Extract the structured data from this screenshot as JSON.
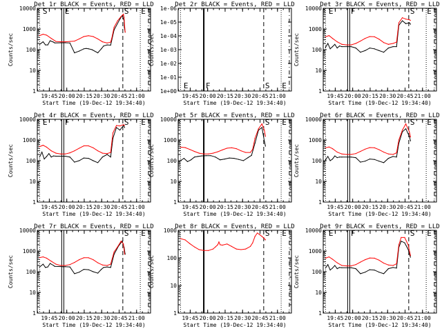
{
  "figure": {
    "title": ""
  },
  "common": {
    "title_suffix": "BLACK = Events, RED = LLD",
    "xlabel": "Start Time (19-Dec-12 19:34:40)",
    "ylabel": "Counts/sec",
    "xticks": [
      "19:45",
      "20:00",
      "20:15",
      "20:30",
      "20:45",
      "21:00"
    ],
    "colors": {
      "events": "#000000",
      "lld": "#ff0000"
    }
  },
  "chart_data": [
    {
      "type": "line",
      "detector": "Det 1r",
      "title": "Det 1r  BLACK = Events, RED = LLD",
      "xlim": [
        "19:34:40",
        "21:12"
      ],
      "ylim": [
        1,
        10000
      ],
      "yticks": [
        "1",
        "10",
        "100",
        "1000",
        "10000"
      ],
      "markers": [
        "S",
        "E",
        "S",
        "E"
      ],
      "series": [
        {
          "name": "Events",
          "color": "#000000",
          "x": [
            0,
            3,
            5,
            7,
            9,
            12,
            13,
            20,
            22,
            26,
            30,
            34,
            38,
            40,
            42,
            45,
            50,
            53,
            55,
            58,
            61,
            64,
            69,
            71,
            72.6,
            72.8,
            73.5
          ],
          "y": [
            180,
            240,
            170,
            170,
            270,
            230,
            210,
            215,
            215,
            210,
            70,
            85,
            110,
            115,
            110,
            100,
            70,
            110,
            150,
            170,
            165,
            900,
            3000,
            4500,
            2500,
            1200,
            700
          ]
        },
        {
          "name": "LLD",
          "color": "#ff0000",
          "x": [
            0,
            3,
            6,
            10,
            14,
            18,
            22,
            26,
            30,
            34,
            38,
            42,
            46,
            50,
            54,
            58,
            61,
            62,
            64,
            67,
            70,
            72,
            72.6,
            73,
            73.5
          ],
          "y": [
            480,
            560,
            500,
            350,
            250,
            240,
            240,
            250,
            260,
            330,
            430,
            470,
            430,
            330,
            240,
            210,
            230,
            350,
            1200,
            2500,
            4000,
            5200,
            3500,
            1500,
            700
          ]
        }
      ]
    },
    {
      "type": "line",
      "detector": "Det 2r",
      "title": "Det 2r  BLACK = Events, RED = LLD",
      "xlim": [
        "19:34:40",
        "21:12"
      ],
      "ylim": [
        1,
        1.00001
      ],
      "yticks": [
        "1e+00",
        "1e-01",
        "1e-02",
        "1e-03",
        "1e-04",
        "1e-05",
        "1e-06"
      ],
      "markers": [
        "E",
        "F",
        "S",
        "E"
      ],
      "series": []
    },
    {
      "type": "line",
      "detector": "Det 3r",
      "title": "Det 3r  BLACK = Events, RED = LLD",
      "xlim": [
        "19:34:40",
        "21:12"
      ],
      "ylim": [
        1,
        10000
      ],
      "yticks": [
        "1",
        "10",
        "100",
        "1000",
        "10000"
      ],
      "markers": [
        "E",
        "F",
        "S",
        "E"
      ],
      "series": [
        {
          "name": "Events",
          "color": "#000000",
          "x": [
            0,
            2,
            4,
            6,
            8,
            10,
            12,
            14,
            22,
            26,
            30,
            34,
            38,
            42,
            46,
            50,
            54,
            58,
            61,
            63,
            66,
            69,
            72,
            73
          ],
          "y": [
            130,
            200,
            110,
            140,
            180,
            120,
            150,
            140,
            140,
            120,
            75,
            90,
            120,
            110,
            90,
            75,
            120,
            140,
            140,
            1500,
            2500,
            1800,
            2000,
            1700
          ]
        },
        {
          "name": "LLD",
          "color": "#ff0000",
          "x": [
            0,
            3,
            6,
            10,
            14,
            18,
            22,
            26,
            30,
            34,
            38,
            42,
            46,
            50,
            54,
            58,
            61,
            63,
            66,
            69,
            72,
            73
          ],
          "y": [
            420,
            480,
            350,
            240,
            180,
            170,
            170,
            200,
            260,
            350,
            430,
            420,
            320,
            220,
            180,
            200,
            230,
            2000,
            3500,
            3000,
            2800,
            2600
          ]
        }
      ]
    },
    {
      "type": "line",
      "detector": "Det 4r",
      "title": "Det 4r  BLACK = Events, RED = LLD",
      "xlim": [
        "19:34:40",
        "21:12"
      ],
      "ylim": [
        1,
        10000
      ],
      "yticks": [
        "1",
        "10",
        "100",
        "1000",
        "10000"
      ],
      "markers": [
        "E",
        "F",
        "S",
        "E"
      ],
      "series": [
        {
          "name": "Events",
          "color": "#000000",
          "x": [
            0,
            2,
            4,
            6,
            8,
            10,
            12,
            14,
            22,
            26,
            30,
            34,
            38,
            42,
            46,
            50,
            54,
            58,
            61,
            63,
            66,
            69,
            72,
            73
          ],
          "y": [
            150,
            260,
            120,
            160,
            220,
            150,
            170,
            165,
            165,
            150,
            85,
            100,
            135,
            130,
            100,
            80,
            150,
            200,
            150,
            1200,
            4000,
            3000,
            5000,
            4000
          ]
        },
        {
          "name": "LLD",
          "color": "#ff0000",
          "x": [
            0,
            3,
            6,
            10,
            14,
            18,
            22,
            26,
            30,
            34,
            38,
            42,
            46,
            50,
            54,
            58,
            61,
            63,
            66,
            69,
            72,
            73
          ],
          "y": [
            480,
            560,
            450,
            300,
            230,
            210,
            210,
            240,
            300,
            400,
            520,
            520,
            420,
            300,
            230,
            220,
            250,
            2200,
            5000,
            4800,
            5500,
            5000
          ]
        }
      ]
    },
    {
      "type": "line",
      "detector": "Det 5r",
      "title": "Det 5r  BLACK = Events, RED = LLD",
      "xlim": [
        "19:34:40",
        "21:12"
      ],
      "ylim": [
        1,
        10000
      ],
      "yticks": [
        "1",
        "10",
        "100",
        "1000",
        "10000"
      ],
      "markers": [
        "S",
        "E"
      ],
      "series": [
        {
          "name": "Events",
          "color": "#000000",
          "x": [
            0,
            3,
            6,
            9,
            12,
            15,
            18,
            22,
            26,
            30,
            34,
            38,
            42,
            46,
            50,
            54,
            58,
            61,
            64,
            67,
            70,
            72,
            73
          ],
          "y": [
            100,
            130,
            90,
            110,
            150,
            160,
            170,
            175,
            175,
            150,
            110,
            120,
            135,
            130,
            115,
            100,
            140,
            180,
            700,
            3000,
            4000,
            900,
            500
          ]
        },
        {
          "name": "LLD",
          "color": "#ff0000",
          "x": [
            0,
            4,
            8,
            12,
            16,
            20,
            24,
            28,
            32,
            36,
            40,
            44,
            48,
            52,
            56,
            60,
            62,
            64,
            67,
            70,
            72,
            73
          ],
          "y": [
            450,
            430,
            350,
            280,
            230,
            210,
            210,
            230,
            270,
            330,
            400,
            420,
            380,
            300,
            250,
            250,
            350,
            1200,
            3500,
            6000,
            3000,
            1500
          ]
        }
      ]
    },
    {
      "type": "line",
      "detector": "Det 6r",
      "title": "Det 6r  BLACK = Events, RED = LLD",
      "xlim": [
        "19:34:40",
        "21:12"
      ],
      "ylim": [
        1,
        10000
      ],
      "yticks": [
        "1",
        "10",
        "100",
        "1000",
        "10000"
      ],
      "markers": [
        "S",
        "E"
      ],
      "series": [
        {
          "name": "Events",
          "color": "#000000",
          "x": [
            0,
            2,
            4,
            6,
            8,
            10,
            12,
            14,
            22,
            26,
            30,
            34,
            38,
            42,
            46,
            50,
            54,
            58,
            61,
            63,
            66,
            69,
            72,
            73
          ],
          "y": [
            110,
            160,
            100,
            120,
            170,
            140,
            150,
            150,
            150,
            140,
            85,
            95,
            120,
            115,
            95,
            80,
            130,
            160,
            150,
            700,
            2500,
            3500,
            1500,
            900
          ]
        },
        {
          "name": "LLD",
          "color": "#ff0000",
          "x": [
            0,
            3,
            6,
            10,
            14,
            18,
            22,
            26,
            30,
            34,
            38,
            42,
            46,
            50,
            54,
            58,
            61,
            63,
            66,
            69,
            72,
            73
          ],
          "y": [
            420,
            460,
            380,
            260,
            210,
            200,
            200,
            220,
            280,
            360,
            430,
            420,
            340,
            260,
            210,
            200,
            240,
            1000,
            3000,
            6000,
            2500,
            1400
          ]
        }
      ]
    },
    {
      "type": "line",
      "detector": "Det 7r",
      "title": "Det 7r  BLACK = Events, RED = LLD",
      "xlim": [
        "19:34:40",
        "21:12"
      ],
      "ylim": [
        1,
        10000
      ],
      "yticks": [
        "1",
        "10",
        "100",
        "1000",
        "10000"
      ],
      "markers": [
        "S",
        "E"
      ],
      "series": [
        {
          "name": "Events",
          "color": "#000000",
          "x": [
            0,
            3,
            5,
            7,
            9,
            12,
            13,
            20,
            22,
            26,
            30,
            34,
            38,
            42,
            46,
            50,
            53,
            55,
            58,
            61,
            64,
            68,
            71,
            72.6,
            73.5
          ],
          "y": [
            170,
            230,
            160,
            170,
            250,
            200,
            180,
            175,
            175,
            170,
            80,
            95,
            130,
            125,
            100,
            85,
            130,
            160,
            170,
            160,
            700,
            1800,
            3000,
            1500,
            700
          ]
        },
        {
          "name": "LLD",
          "color": "#ff0000",
          "x": [
            0,
            3,
            6,
            10,
            14,
            18,
            22,
            26,
            30,
            34,
            38,
            42,
            46,
            50,
            54,
            58,
            61,
            64,
            67,
            70,
            72,
            73
          ],
          "y": [
            480,
            520,
            450,
            320,
            230,
            200,
            200,
            220,
            280,
            380,
            470,
            470,
            380,
            270,
            210,
            200,
            230,
            900,
            1600,
            3000,
            2200,
            700
          ]
        }
      ]
    },
    {
      "type": "line",
      "detector": "Det 8r",
      "title": "Det 8r  BLACK = Events, RED = LLD",
      "xlim": [
        "19:34:40",
        "21:12"
      ],
      "ylim": [
        1,
        1000
      ],
      "yticks": [
        "1",
        "10",
        "100",
        "1000"
      ],
      "markers": [
        "S",
        "E"
      ],
      "series": [
        {
          "name": "LLD",
          "color": "#ff0000",
          "x": [
            0,
            4,
            8,
            12,
            16,
            20,
            24,
            28,
            30,
            32,
            33,
            34,
            36,
            40,
            44,
            48,
            52,
            56,
            60,
            62,
            64,
            66,
            68,
            70,
            72,
            73
          ],
          "y": [
            500,
            450,
            330,
            250,
            200,
            185,
            185,
            210,
            250,
            300,
            380,
            300,
            290,
            320,
            260,
            210,
            200,
            210,
            260,
            350,
            600,
            800,
            700,
            600,
            500,
            450
          ]
        }
      ]
    },
    {
      "type": "line",
      "detector": "Det 9r",
      "title": "Det 9r  BLACK = Events, RED = LLD",
      "xlim": [
        "19:34:40",
        "21:12"
      ],
      "ylim": [
        1,
        10000
      ],
      "yticks": [
        "1",
        "10",
        "100",
        "1000",
        "10000"
      ],
      "markers": [
        "E",
        "F",
        "S",
        "E"
      ],
      "series": [
        {
          "name": "Events",
          "color": "#000000",
          "x": [
            0,
            2,
            4,
            6,
            8,
            10,
            12,
            14,
            22,
            26,
            30,
            34,
            38,
            42,
            46,
            50,
            54,
            58,
            61,
            63,
            65,
            68,
            71,
            72.5,
            73
          ],
          "y": [
            150,
            220,
            120,
            150,
            200,
            140,
            160,
            155,
            155,
            140,
            80,
            95,
            125,
            120,
            95,
            80,
            140,
            160,
            150,
            1500,
            3000,
            2500,
            1200,
            600,
            500
          ]
        },
        {
          "name": "LLD",
          "color": "#ff0000",
          "x": [
            0,
            3,
            6,
            10,
            14,
            18,
            22,
            26,
            30,
            34,
            38,
            42,
            46,
            50,
            54,
            58,
            61,
            63,
            65,
            68,
            71,
            72.5,
            73
          ],
          "y": [
            450,
            520,
            400,
            270,
            200,
            190,
            190,
            220,
            290,
            380,
            460,
            450,
            360,
            260,
            210,
            200,
            240,
            2000,
            4500,
            4500,
            2000,
            800,
            600
          ]
        }
      ]
    }
  ]
}
